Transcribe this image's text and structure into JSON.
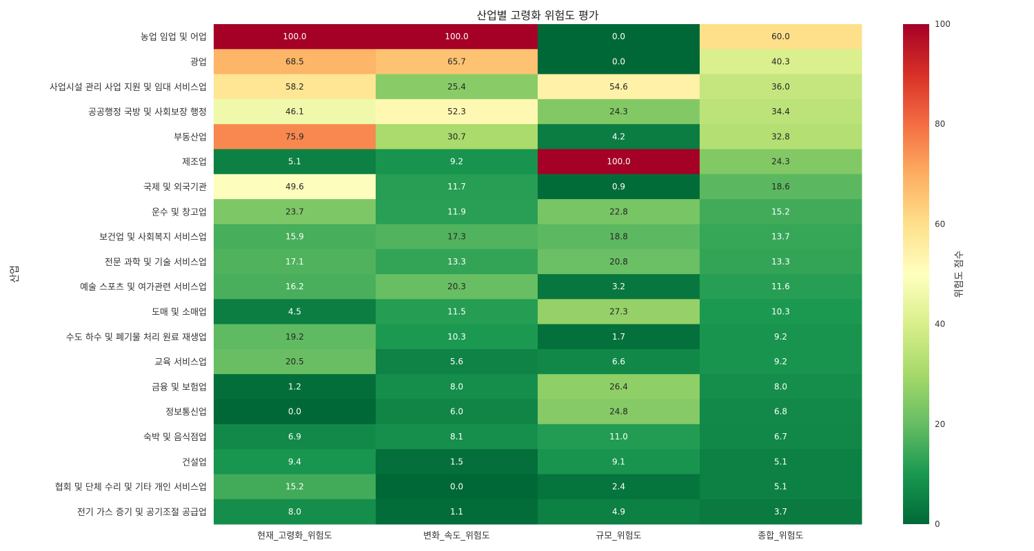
{
  "chart_data": {
    "type": "heatmap",
    "title": "산업별 고령화 위험도 평가",
    "xlabel": "",
    "ylabel": "산업",
    "colorbar_label": "위험도 점수",
    "colormap": "RdYlGn_r",
    "vmin": 0,
    "vmax": 100,
    "colorbar_ticks": [
      0,
      20,
      40,
      60,
      80,
      100
    ],
    "columns": [
      "현재_고령화_위험도",
      "변화_속도_위험도",
      "규모_위험도",
      "종합_위험도"
    ],
    "rows": [
      "농업 임업 및 어업",
      "광업",
      "사업시설 관리 사업 지원 및 임대 서비스업",
      "공공행정 국방 및 사회보장 행정",
      "부동산업",
      "제조업",
      "국제 및 외국기관",
      "운수 및 창고업",
      "보건업 및 사회복지 서비스업",
      "전문 과학 및 기술 서비스업",
      "예술 스포츠 및 여가관련 서비스업",
      "도매 및 소매업",
      "수도 하수 및 폐기물 처리 원료 재생업",
      "교육 서비스업",
      "금융 및 보험업",
      "정보통신업",
      "숙박 및 음식점업",
      "건설업",
      "협회 및 단체 수리 및 기타 개인 서비스업",
      "전기 가스 증기 및 공기조절 공급업"
    ],
    "values": [
      [
        100.0,
        100.0,
        0.0,
        60.0
      ],
      [
        68.5,
        65.7,
        0.0,
        40.3
      ],
      [
        58.2,
        25.4,
        54.6,
        36.0
      ],
      [
        46.1,
        52.3,
        24.3,
        34.4
      ],
      [
        75.9,
        30.7,
        4.2,
        32.8
      ],
      [
        5.1,
        9.2,
        100.0,
        24.3
      ],
      [
        49.6,
        11.7,
        0.9,
        18.6
      ],
      [
        23.7,
        11.9,
        22.8,
        15.2
      ],
      [
        15.9,
        17.3,
        18.8,
        13.7
      ],
      [
        17.1,
        13.3,
        20.8,
        13.3
      ],
      [
        16.2,
        20.3,
        3.2,
        11.6
      ],
      [
        4.5,
        11.5,
        27.3,
        10.3
      ],
      [
        19.2,
        10.3,
        1.7,
        9.2
      ],
      [
        20.5,
        5.6,
        6.6,
        9.2
      ],
      [
        1.2,
        8.0,
        26.4,
        8.0
      ],
      [
        0.0,
        6.0,
        24.8,
        6.8
      ],
      [
        6.9,
        8.1,
        11.0,
        6.7
      ],
      [
        9.4,
        1.5,
        9.1,
        5.1
      ],
      [
        15.2,
        0.0,
        2.4,
        5.1
      ],
      [
        8.0,
        1.1,
        4.9,
        3.7
      ]
    ]
  }
}
